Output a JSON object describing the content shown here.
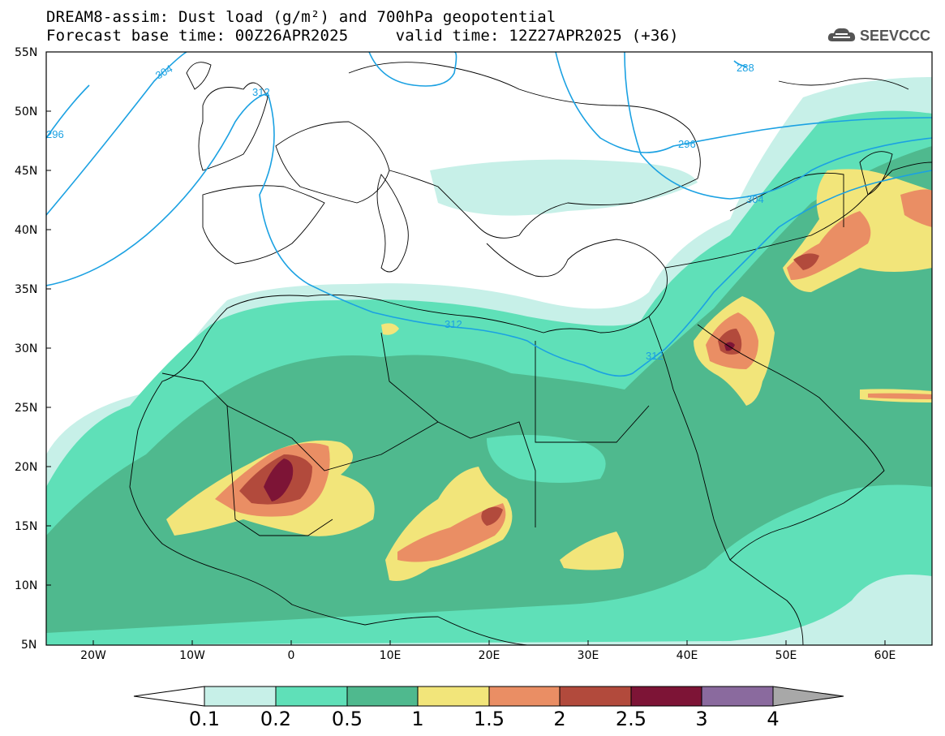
{
  "title_line1": "DREAM8-assim: Dust load (g/m²) and 700hPa geopotential",
  "title_line2": "Forecast base time: 00Z26APR2025     valid time: 12Z27APR2025 (+36)",
  "logo_text": "SEEVCCC",
  "lat_labels": [
    "55N",
    "50N",
    "45N",
    "40N",
    "35N",
    "30N",
    "25N",
    "20N",
    "15N",
    "10N",
    "5N"
  ],
  "lon_labels": [
    "20W",
    "10W",
    "0",
    "10E",
    "20E",
    "30E",
    "40E",
    "50E",
    "60E"
  ],
  "contour_labels": [
    "304",
    "296",
    "312",
    "288",
    "296",
    "304",
    "312",
    "312"
  ],
  "colorbar": {
    "labels": [
      "0.1",
      "0.2",
      "0.5",
      "1",
      "1.5",
      "2",
      "2.5",
      "3",
      "4"
    ],
    "colors": [
      "#c7f0e8",
      "#5fe0b8",
      "#4fb98e",
      "#f2e57a",
      "#ea8e64",
      "#b24a3c",
      "#7d1436",
      "#8a6a9e"
    ],
    "over_color": "#a8a8a8",
    "under_color": "#ffffff"
  },
  "map_colors": {
    "geopotential_line": "#1ba1e2",
    "coastline": "#000000",
    "ocean": "#ffffff"
  }
}
